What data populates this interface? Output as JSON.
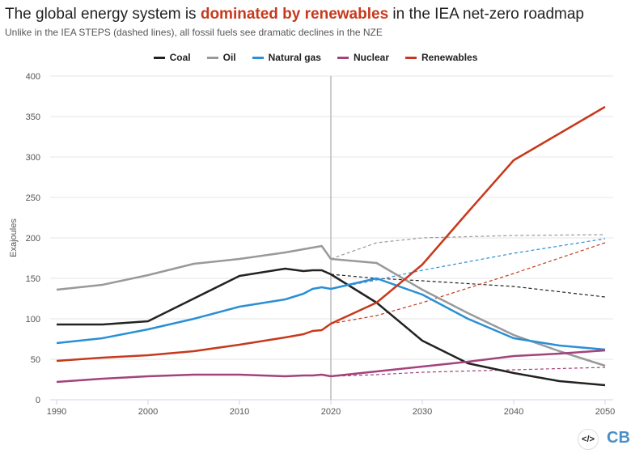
{
  "title": {
    "pre": "The global energy system is ",
    "highlight": "dominated by renewables",
    "post": " in the IEA net-zero roadmap"
  },
  "subtitle": "Unlike in the IEA STEPS (dashed lines), all fossil fuels see dramatic declines in the NZE",
  "footer": {
    "embed_icon": "code-embed-icon",
    "logo": "CB"
  },
  "chart_data": {
    "type": "line",
    "ylabel": "Exajoules",
    "xlim": [
      1990,
      2050
    ],
    "ylim": [
      0,
      400
    ],
    "xticks": [
      1990,
      2000,
      2010,
      2020,
      2030,
      2040,
      2050
    ],
    "yticks": [
      0,
      50,
      100,
      150,
      200,
      250,
      300,
      350,
      400
    ],
    "grid": "horizontal",
    "legend_position": "top",
    "reference_line_x": 2020,
    "series": [
      {
        "name": "Coal",
        "color": "#222222",
        "historical": {
          "x": [
            1990,
            1995,
            2000,
            2005,
            2010,
            2015,
            2017,
            2018,
            2019,
            2020
          ],
          "y": [
            93,
            93,
            97,
            125,
            153,
            162,
            159,
            160,
            160,
            155
          ]
        },
        "nze": {
          "x": [
            2020,
            2025,
            2030,
            2035,
            2040,
            2045,
            2050
          ],
          "y": [
            155,
            120,
            73,
            45,
            33,
            23,
            18
          ]
        },
        "steps": {
          "x": [
            2020,
            2025,
            2030,
            2040,
            2050
          ],
          "y": [
            155,
            150,
            147,
            140,
            127
          ]
        }
      },
      {
        "name": "Oil",
        "color": "#999999",
        "historical": {
          "x": [
            1990,
            1995,
            2000,
            2005,
            2010,
            2015,
            2017,
            2018,
            2019,
            2020
          ],
          "y": [
            136,
            142,
            154,
            168,
            174,
            182,
            186,
            188,
            190,
            174
          ]
        },
        "nze": {
          "x": [
            2020,
            2025,
            2030,
            2035,
            2040,
            2045,
            2050
          ],
          "y": [
            174,
            169,
            136,
            107,
            80,
            60,
            42
          ]
        },
        "steps": {
          "x": [
            2020,
            2025,
            2030,
            2040,
            2050
          ],
          "y": [
            174,
            194,
            200,
            203,
            204
          ]
        }
      },
      {
        "name": "Natural gas",
        "color": "#2a8fd6",
        "historical": {
          "x": [
            1990,
            1995,
            2000,
            2005,
            2010,
            2015,
            2017,
            2018,
            2019,
            2020
          ],
          "y": [
            70,
            76,
            87,
            100,
            115,
            124,
            131,
            137,
            139,
            137
          ]
        },
        "nze": {
          "x": [
            2020,
            2025,
            2030,
            2035,
            2040,
            2045,
            2050
          ],
          "y": [
            137,
            150,
            130,
            100,
            76,
            67,
            62
          ]
        },
        "steps": {
          "x": [
            2020,
            2025,
            2030,
            2040,
            2050
          ],
          "y": [
            137,
            148,
            160,
            181,
            199
          ]
        }
      },
      {
        "name": "Nuclear",
        "color": "#a3427c",
        "historical": {
          "x": [
            1990,
            1995,
            2000,
            2005,
            2010,
            2015,
            2017,
            2018,
            2019,
            2020
          ],
          "y": [
            22,
            26,
            29,
            31,
            31,
            29,
            30,
            30,
            31,
            29
          ]
        },
        "nze": {
          "x": [
            2020,
            2025,
            2030,
            2035,
            2040,
            2045,
            2050
          ],
          "y": [
            29,
            35,
            41,
            47,
            54,
            57,
            61
          ]
        },
        "steps": {
          "x": [
            2020,
            2025,
            2030,
            2040,
            2050
          ],
          "y": [
            29,
            31,
            34,
            37,
            40
          ]
        }
      },
      {
        "name": "Renewables",
        "color": "#c7391c",
        "historical": {
          "x": [
            1990,
            1995,
            2000,
            2005,
            2010,
            2015,
            2017,
            2018,
            2019,
            2020
          ],
          "y": [
            48,
            52,
            55,
            60,
            68,
            77,
            81,
            85,
            86,
            94
          ]
        },
        "nze": {
          "x": [
            2020,
            2025,
            2030,
            2035,
            2040,
            2045,
            2050
          ],
          "y": [
            94,
            120,
            167,
            232,
            296,
            329,
            362
          ]
        },
        "steps": {
          "x": [
            2020,
            2025,
            2030,
            2040,
            2050
          ],
          "y": [
            94,
            104,
            120,
            156,
            194
          ]
        }
      }
    ]
  }
}
